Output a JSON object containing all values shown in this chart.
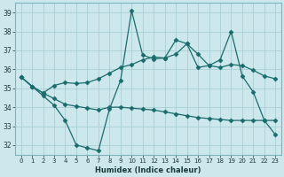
{
  "xlabel": "Humidex (Indice chaleur)",
  "background_color": "#cce8ed",
  "grid_color": "#aacdd4",
  "line_color": "#1a6b6b",
  "x": [
    0,
    1,
    2,
    3,
    4,
    5,
    6,
    7,
    8,
    9,
    10,
    11,
    12,
    13,
    14,
    15,
    16,
    17,
    18,
    19,
    20,
    21,
    22,
    23
  ],
  "ylim": [
    31.5,
    39.5
  ],
  "yticks": [
    32,
    33,
    34,
    35,
    36,
    37,
    38,
    39
  ],
  "xlim": [
    -0.5,
    23.5
  ],
  "line1": [
    35.6,
    35.1,
    34.6,
    34.1,
    33.3,
    32.0,
    31.85,
    31.7,
    33.9,
    35.4,
    39.1,
    36.75,
    36.55,
    36.6,
    37.55,
    37.35,
    36.1,
    36.2,
    36.5,
    38.0,
    35.65,
    34.8,
    33.3,
    32.55
  ],
  "line2": [
    35.6,
    35.1,
    34.75,
    35.15,
    35.3,
    35.25,
    35.3,
    35.5,
    35.8,
    36.1,
    36.25,
    36.5,
    36.65,
    36.6,
    36.8,
    37.35,
    36.8,
    36.2,
    36.1,
    36.25,
    36.2,
    35.95,
    35.65,
    35.5
  ],
  "line3": [
    35.6,
    35.1,
    34.75,
    34.45,
    34.15,
    34.05,
    33.95,
    33.85,
    34.0,
    34.0,
    33.95,
    33.9,
    33.85,
    33.75,
    33.65,
    33.55,
    33.45,
    33.4,
    33.35,
    33.3,
    33.3,
    33.3,
    33.3,
    33.3
  ]
}
